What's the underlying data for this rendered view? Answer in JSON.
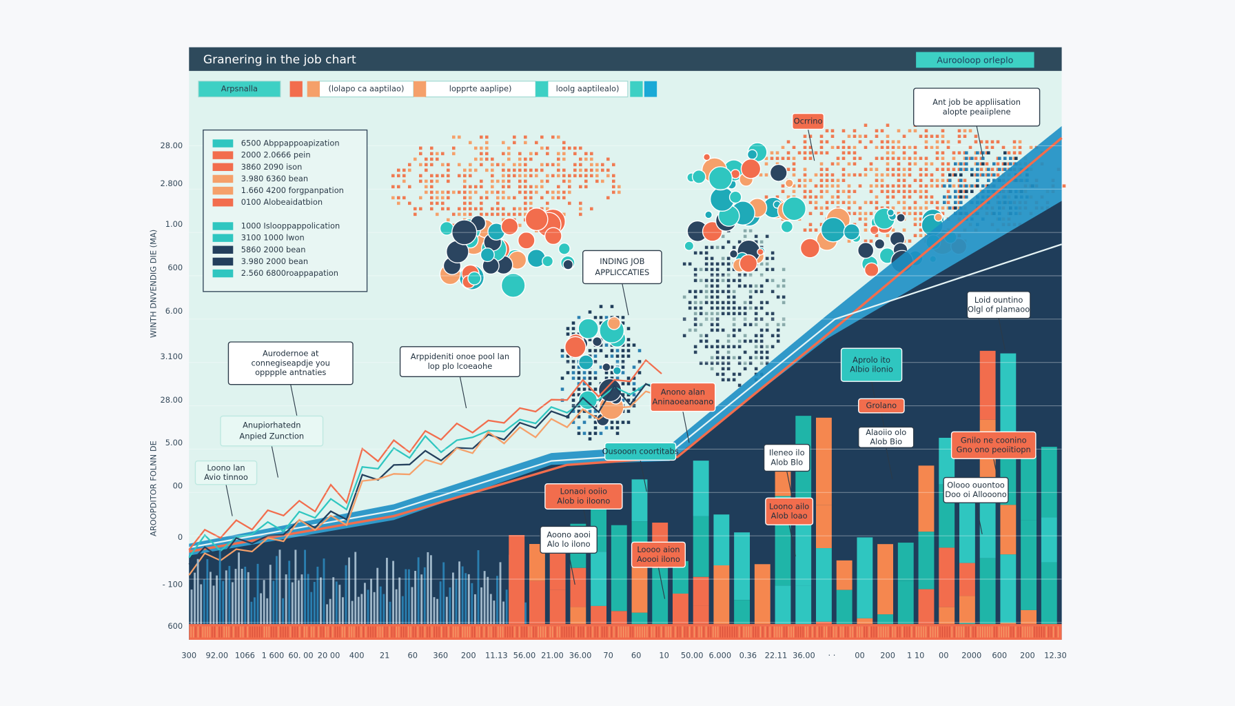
{
  "header": {
    "title": "Granering in the job chart",
    "badge": "Aurooloop orleplo"
  },
  "tabs": [
    "Arpsnalla",
    "(lolapo ca aaptilao)",
    "lopprte aaplipe)",
    "loolg aaptilealo)"
  ],
  "legend": [
    {
      "label": "6500 Abppappoapization",
      "color": "#2fc6c0"
    },
    {
      "label": "2000 2.0666 pein",
      "color": "#f26d4d"
    },
    {
      "label": "3860 2090 ison",
      "color": "#f26d4d"
    },
    {
      "label": "3.980 6360 bean",
      "color": "#f5a06a"
    },
    {
      "label": "1.660 4200 forgpanpation",
      "color": "#f5a06a"
    },
    {
      "label": "0100 Alobeaidatbion",
      "color": "#f26d4d"
    },
    {
      "label": "1000 Islooppappolication",
      "color": "#2fc6c0"
    },
    {
      "label": "3100 1000 lwon",
      "color": "#2fc6c0"
    },
    {
      "label": "5860 2000 bean",
      "color": "#233f5c"
    },
    {
      "label": "3.980 2000 bean",
      "color": "#233f5c"
    },
    {
      "label": "2.560 6800roappapation",
      "color": "#2fc6c0"
    }
  ],
  "y_axis_titles": [
    "WINTH DNVENDIG DIE (MA)",
    "AROOPDITOR FOLNN DE"
  ],
  "y_labels": [
    "28.00",
    "2.800",
    "1.00",
    "600",
    "6.00",
    "3.100",
    "28.00",
    "5.00",
    "00",
    "0",
    "- 100",
    "600"
  ],
  "x_labels": [
    "300",
    "92.00",
    "1066",
    "1 600",
    "60. 00",
    "20 00",
    "400",
    "21",
    "60",
    "360",
    "200",
    "11.13",
    "56.00",
    "21.00",
    "36.00",
    "70",
    "60",
    "10",
    "50.00",
    "6.000",
    "0.36",
    "22.11",
    "36.00",
    "· ·",
    "00",
    "200",
    "1 10",
    "00",
    "2000",
    "600",
    "200",
    "12.30"
  ],
  "annotations": [
    [
      "Aurodernoe at",
      "connegiseapdje you",
      "opppple antnaties"
    ],
    [
      "Arppideniti onoe pool lan",
      "lop plo lcoeaohe"
    ],
    [
      "INDING JOB",
      "APPLICCATIES"
    ],
    [
      "Anupiorhatedn",
      "Anpied Zunction"
    ],
    [
      "Loono lan",
      "Avio tinnoo"
    ],
    [
      "Ant job be appliisation",
      "alopte peaiiplene"
    ],
    [
      "Ocrrino"
    ],
    [
      "Loid ountino",
      "Olgl of plamaoo"
    ],
    [
      "Aprolo ito",
      "Albio ilonio"
    ],
    [
      "Anono alan",
      "Aninaoeanoano"
    ],
    [
      "Grolano"
    ],
    [
      "Ileneo ilo",
      "Alob Blo"
    ],
    [
      "Alaoiio olo",
      "Alob Bio"
    ],
    [
      "Gnilo ne coonino",
      "Gno ono peoiitiopn"
    ],
    [
      "Olooo ouontoo",
      "Doo oi Allooono"
    ],
    [
      "Ousooon coortitabs"
    ],
    [
      "Lonaoi ooiio",
      "Alob io iloono"
    ],
    [
      "Loono ailo",
      "Alob loao"
    ],
    [
      "Aoono aooi",
      "Alo lo ilono"
    ],
    [
      "Loooo aion",
      "Aoooi ilono"
    ]
  ]
}
